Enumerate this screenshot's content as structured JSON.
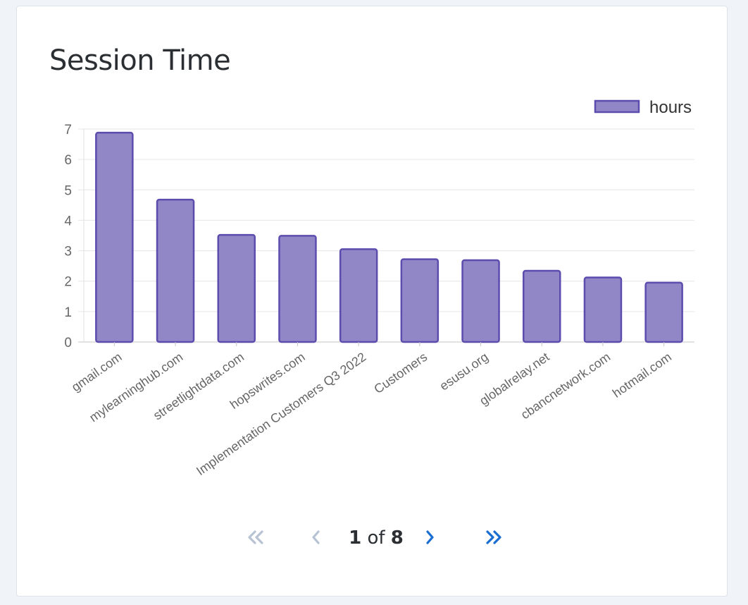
{
  "card": {
    "title": "Session Time"
  },
  "chart_data": {
    "type": "bar",
    "title": "Session Time",
    "xlabel": "",
    "ylabel": "",
    "categories": [
      "gmail.com",
      "mylearninghub.com",
      "streetlightdata.com",
      "hopswrites.com",
      "Implementation Customers Q3 2022",
      "Customers",
      "esusu.org",
      "globalrelay.net",
      "cbancnetwork.com",
      "hotmail.com"
    ],
    "series": [
      {
        "name": "hours",
        "values": [
          6.88,
          4.68,
          3.52,
          3.49,
          3.05,
          2.72,
          2.69,
          2.34,
          2.12,
          1.95
        ],
        "fill": "#9187c6",
        "stroke": "#5b4cae"
      }
    ],
    "yticks": [
      "0",
      "1",
      "2",
      "3",
      "4",
      "5",
      "6",
      "7"
    ],
    "ylim": [
      0,
      7
    ],
    "grid": true,
    "legend": "top-right"
  },
  "pagination": {
    "current": "1",
    "of_text": "of",
    "total": "8",
    "active_color": "#1a6dd1",
    "disabled_color": "#b7c3d2"
  }
}
